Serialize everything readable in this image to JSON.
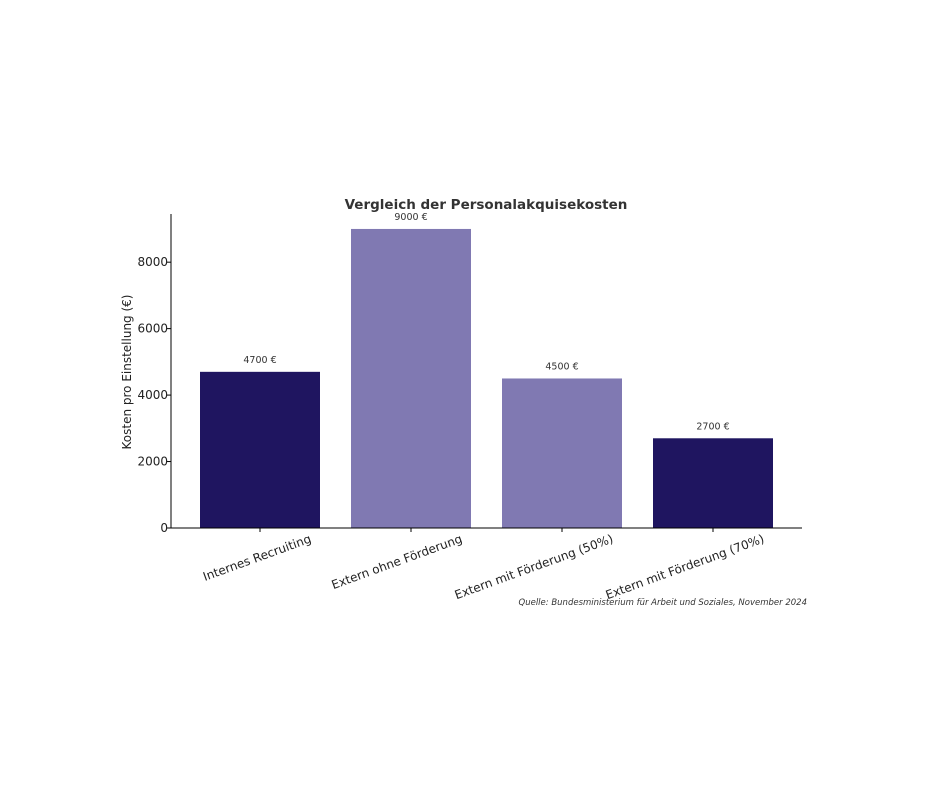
{
  "chart_data": {
    "type": "bar",
    "title": "Vergleich der Personalakquisekosten",
    "xlabel": "",
    "ylabel": "Kosten pro Einstellung (€)",
    "categories": [
      "Internes Recruiting",
      "Extern ohne Förderung",
      "Extern mit Förderung (50%)",
      "Extern mit Förderung (70%)"
    ],
    "values": [
      4700,
      9000,
      4500,
      2700
    ],
    "data_labels": [
      "4700 €",
      "9000 €",
      "4500 €",
      "2700 €"
    ],
    "bar_colors": [
      "#1f1560",
      "#8079b2",
      "#8079b2",
      "#1f1560"
    ],
    "ylim": [
      0,
      9450
    ],
    "yticks": [
      0,
      2000,
      4000,
      6000,
      8000
    ],
    "ytick_labels": [
      "0",
      "2000",
      "4000",
      "6000",
      "8000"
    ],
    "grid": false,
    "source_note": "Quelle: Bundesministerium für Arbeit und Soziales, November 2024"
  }
}
